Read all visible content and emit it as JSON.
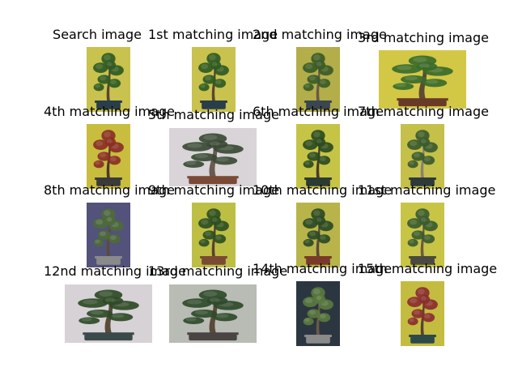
{
  "figure": {
    "background": "#ffffff",
    "panels": [
      {
        "title": "Search image",
        "bg": "#c9c24e",
        "foliage": "#2f5a22",
        "trunk": "#5a4530",
        "pot": "#2a3d4a",
        "orientation": "portrait"
      },
      {
        "title": "1st matching image",
        "bg": "#c9c24e",
        "foliage": "#2f5a22",
        "trunk": "#5a4530",
        "pot": "#2a3d4a",
        "orientation": "portrait"
      },
      {
        "title": "2nd matching image",
        "bg": "#b3ad4a",
        "foliage": "#3a5a26",
        "trunk": "#6a5a44",
        "pot": "#3a4650",
        "orientation": "portrait"
      },
      {
        "title": "3rd matching image",
        "bg": "#d2c846",
        "foliage": "#3a6a2a",
        "trunk": "#5e4a34",
        "pot": "#6a3a28",
        "orientation": "landscape"
      },
      {
        "title": "4th matching image",
        "bg": "#c8bd3e",
        "foliage": "#8a2e24",
        "trunk": "#4a3a2a",
        "pot": "#3a3a3a",
        "orientation": "portrait"
      },
      {
        "title": "5th matching image",
        "bg": "#d8d4d8",
        "foliage": "#3a4a34",
        "trunk": "#6a5a50",
        "pot": "#7a4a36",
        "orientation": "landscape"
      },
      {
        "title": "6th matching image",
        "bg": "#c6c446",
        "foliage": "#2a4a1e",
        "trunk": "#4a3a2a",
        "pot": "#2c3a34",
        "orientation": "portrait"
      },
      {
        "title": "7th matching image",
        "bg": "#c4c04a",
        "foliage": "#3a5a2a",
        "trunk": "#8a8070",
        "pot": "#2e3a3a",
        "orientation": "portrait"
      },
      {
        "title": "8th matching image",
        "bg": "#52527a",
        "foliage": "#4e6a3a",
        "trunk": "#5a4a40",
        "pot": "#8a8a8a",
        "orientation": "portrait"
      },
      {
        "title": "9th matching image",
        "bg": "#bdbf44",
        "foliage": "#2e4e20",
        "trunk": "#5a4030",
        "pot": "#7a4a34",
        "orientation": "portrait"
      },
      {
        "title": "10th matching image",
        "bg": "#b8b44a",
        "foliage": "#2a4a22",
        "trunk": "#5a4a3a",
        "pot": "#7a3a2a",
        "orientation": "portrait"
      },
      {
        "title": "11st matching image",
        "bg": "#c8c446",
        "foliage": "#3a5a2e",
        "trunk": "#6a5a44",
        "pot": "#4a4a40",
        "orientation": "portrait"
      },
      {
        "title": "12nd matching image",
        "bg": "#d6d2d6",
        "foliage": "#2e4a26",
        "trunk": "#5a4a3a",
        "pot": "#3a4a4a",
        "orientation": "landscape"
      },
      {
        "title": "13rd matching image",
        "bg": "#b8bcb4",
        "foliage": "#2e4a2a",
        "trunk": "#5a4a3a",
        "pot": "#4a4444",
        "orientation": "landscape"
      },
      {
        "title": "14th matching image",
        "bg": "#2c3640",
        "foliage": "#5a7a3e",
        "trunk": "#6a5a48",
        "pot": "#8a8a8a",
        "orientation": "portrait"
      },
      {
        "title": "15th matching image",
        "bg": "#c4bc40",
        "foliage": "#8a2c2e",
        "trunk": "#5a4030",
        "pot": "#2c4a4a",
        "orientation": "portrait"
      }
    ]
  }
}
